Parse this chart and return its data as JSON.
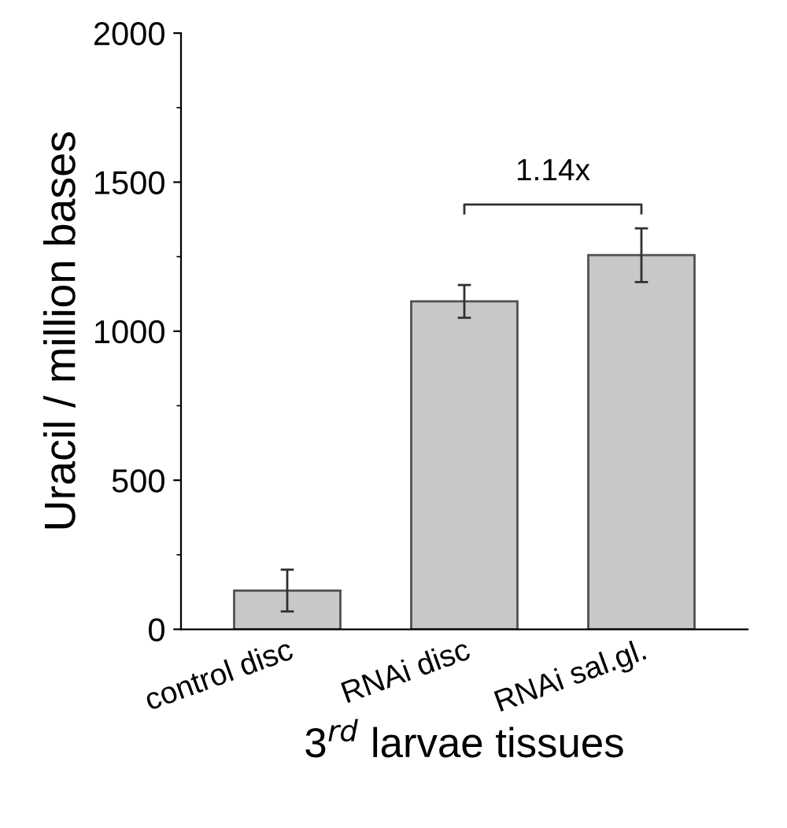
{
  "chart_data": {
    "type": "bar",
    "ylabel": "Uracil / million bases",
    "xlabel": "3$^{rd}$ larvae tissues",
    "categories": [
      "control disc",
      "RNAi disc",
      "RNAi sal.gl."
    ],
    "values": [
      130,
      1100,
      1255
    ],
    "errors": [
      70,
      55,
      90
    ],
    "color": "#c8c8c8",
    "ylim": [
      0,
      2000
    ],
    "yticks": [
      0,
      500,
      1000,
      1500,
      2000
    ],
    "annotations": [
      "1.14x"
    ],
    "grid": false,
    "legend": false
  }
}
